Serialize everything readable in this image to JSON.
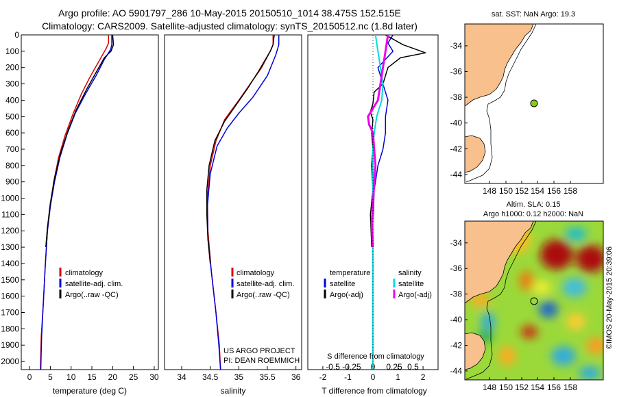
{
  "header": {
    "line1": "Argo profile: AO 5901797_286 10-May-2015 20150510_1014 38.475S 152.515E",
    "line2": "Climatology: CARS2009. Satellite-adjusted climatology: synTS_20150512.nc (1.8d later)"
  },
  "colors": {
    "climatology": "#dd0000",
    "satellite": "#0000dd",
    "argo": "#000000",
    "cyan": "#00dddd",
    "magenta": "#ee00ee",
    "land": "#f7c08c",
    "marker": "#88cc11"
  },
  "chart_data": [
    {
      "type": "line",
      "id": "temperature",
      "xlabel": "temperature (deg C)",
      "ylabel": "",
      "xlim": [
        -2,
        31
      ],
      "ylim": [
        2050,
        0
      ],
      "xticks": [
        0,
        5,
        10,
        15,
        20,
        25,
        30
      ],
      "yticks": [
        0,
        100,
        200,
        300,
        400,
        500,
        600,
        700,
        800,
        900,
        1000,
        1100,
        1200,
        1300,
        1400,
        1500,
        1600,
        1700,
        1800,
        1900,
        2000
      ],
      "legend": [
        "climatology",
        "satellite-adj. clim.",
        "Argo(..raw -QC)"
      ],
      "series": [
        {
          "name": "climatology",
          "color": "#dd0000",
          "width": 1.5,
          "points": [
            [
              19.0,
              0
            ],
            [
              19.0,
              50
            ],
            [
              18.5,
              80
            ],
            [
              16.5,
              170
            ],
            [
              14.5,
              260
            ],
            [
              12.5,
              360
            ],
            [
              10.5,
              480
            ],
            [
              8.5,
              620
            ],
            [
              7.0,
              750
            ],
            [
              5.8,
              900
            ],
            [
              5.0,
              1050
            ],
            [
              4.3,
              1200
            ],
            [
              3.8,
              1400
            ],
            [
              3.3,
              1650
            ],
            [
              2.8,
              1850
            ],
            [
              2.6,
              2050
            ]
          ]
        },
        {
          "name": "satellite-adj. clim.",
          "color": "#0000dd",
          "width": 1.5,
          "points": [
            [
              19.8,
              0
            ],
            [
              19.8,
              60
            ],
            [
              19.5,
              90
            ],
            [
              18.0,
              150
            ],
            [
              16.0,
              250
            ],
            [
              13.5,
              360
            ],
            [
              11.0,
              480
            ],
            [
              9.0,
              610
            ],
            [
              7.3,
              750
            ],
            [
              6.0,
              900
            ],
            [
              5.0,
              1050
            ],
            [
              4.3,
              1200
            ],
            [
              3.8,
              1400
            ],
            [
              3.3,
              1650
            ],
            [
              2.9,
              1850
            ],
            [
              2.7,
              2050
            ]
          ]
        },
        {
          "name": "Argo(..raw -QC)",
          "color": "#000000",
          "width": 1.5,
          "points": [
            [
              20.0,
              0
            ],
            [
              20.2,
              60
            ],
            [
              19.6,
              100
            ],
            [
              18.0,
              140
            ],
            [
              16.0,
              230
            ],
            [
              13.8,
              330
            ],
            [
              11.2,
              460
            ],
            [
              9.2,
              590
            ],
            [
              7.4,
              730
            ],
            [
              6.0,
              880
            ],
            [
              5.0,
              1030
            ],
            [
              4.3,
              1180
            ],
            [
              3.9,
              1300
            ]
          ]
        }
      ]
    },
    {
      "type": "line",
      "id": "salinity",
      "xlabel": "salinity",
      "xlim": [
        33.7,
        36.1
      ],
      "ylim": [
        2050,
        0
      ],
      "xticks": [
        34,
        34.5,
        35,
        35.5,
        36
      ],
      "legend": [
        "climatology",
        "satellite-adj. clim.",
        "Argo(..raw -QC)"
      ],
      "annotation": [
        "US ARGO PROJECT",
        "PI: DEAN ROEMMICH"
      ],
      "series": [
        {
          "name": "climatology",
          "color": "#dd0000",
          "width": 1.5,
          "points": [
            [
              35.6,
              0
            ],
            [
              35.6,
              60
            ],
            [
              35.55,
              100
            ],
            [
              35.4,
              200
            ],
            [
              35.2,
              300
            ],
            [
              35.0,
              400
            ],
            [
              34.75,
              520
            ],
            [
              34.6,
              650
            ],
            [
              34.5,
              800
            ],
            [
              34.45,
              1000
            ],
            [
              34.46,
              1200
            ],
            [
              34.52,
              1450
            ],
            [
              34.6,
              1700
            ],
            [
              34.66,
              1900
            ],
            [
              34.68,
              2050
            ]
          ]
        },
        {
          "name": "satellite-adj. clim.",
          "color": "#0000dd",
          "width": 1.5,
          "points": [
            [
              35.7,
              0
            ],
            [
              35.7,
              60
            ],
            [
              35.65,
              120
            ],
            [
              35.5,
              250
            ],
            [
              35.25,
              380
            ],
            [
              35.0,
              480
            ],
            [
              34.8,
              570
            ],
            [
              34.62,
              680
            ],
            [
              34.5,
              850
            ],
            [
              34.45,
              1050
            ],
            [
              34.46,
              1250
            ],
            [
              34.52,
              1450
            ],
            [
              34.6,
              1700
            ],
            [
              34.65,
              1900
            ],
            [
              34.68,
              2050
            ]
          ]
        },
        {
          "name": "Argo(..raw -QC)",
          "color": "#000000",
          "width": 1.5,
          "points": [
            [
              35.62,
              0
            ],
            [
              35.6,
              60
            ],
            [
              35.55,
              100
            ],
            [
              35.35,
              220
            ],
            [
              35.15,
              330
            ],
            [
              34.95,
              430
            ],
            [
              34.75,
              530
            ],
            [
              34.58,
              650
            ],
            [
              34.48,
              800
            ],
            [
              34.44,
              950
            ],
            [
              34.44,
              1100
            ],
            [
              34.46,
              1250
            ],
            [
              34.5,
              1400
            ]
          ]
        }
      ]
    },
    {
      "type": "line",
      "id": "difference",
      "xlabel": "T difference from climatology",
      "xlabel2": "S difference from climatology",
      "xlim": [
        -2.6,
        2.6
      ],
      "ylim": [
        2050,
        0
      ],
      "xticks": [
        -2,
        -1,
        0,
        1,
        2
      ],
      "xticks2": [
        {
          "v": -1.6,
          "label": "-0.5"
        },
        {
          "v": -0.85,
          "label": "-0.25"
        },
        {
          "v": 0,
          "label": "0"
        },
        {
          "v": 0.85,
          "label": "0.25"
        },
        {
          "v": 1.6,
          "label": "0.5"
        }
      ],
      "legend_t_title": "temperature",
      "legend_s_title": "salinity",
      "legend_t": [
        "satellite",
        "Argo(-adj)"
      ],
      "legend_s": [
        "satellite",
        "Argo(-adj)"
      ],
      "series": [
        {
          "name": "T satellite",
          "color": "#0000dd",
          "width": 1.5,
          "points": [
            [
              0.8,
              0
            ],
            [
              0.6,
              50
            ],
            [
              0.8,
              100
            ],
            [
              0.2,
              200
            ],
            [
              0.4,
              300
            ],
            [
              0.6,
              400
            ],
            [
              0.5,
              500
            ],
            [
              0.5,
              600
            ],
            [
              0.4,
              700
            ],
            [
              0.2,
              800
            ],
            [
              0.05,
              950
            ],
            [
              0.0,
              1200
            ],
            [
              0.0,
              2050
            ]
          ]
        },
        {
          "name": "T Argo(-adj)",
          "color": "#000000",
          "width": 1.5,
          "points": [
            [
              0.5,
              0
            ],
            [
              1.2,
              60
            ],
            [
              2.1,
              110
            ],
            [
              1.1,
              140
            ],
            [
              0.6,
              200
            ],
            [
              0.4,
              300
            ],
            [
              0.05,
              350
            ],
            [
              0.0,
              420
            ],
            [
              -0.1,
              470
            ],
            [
              0.0,
              520
            ],
            [
              -0.05,
              600
            ],
            [
              0.0,
              700
            ],
            [
              -0.05,
              800
            ],
            [
              0.0,
              950
            ],
            [
              -0.1,
              1100
            ],
            [
              -0.05,
              1300
            ]
          ]
        },
        {
          "name": "S satellite",
          "color": "#00dddd",
          "width": 2,
          "points": [
            [
              0.1,
              0
            ],
            [
              0.2,
              100
            ],
            [
              0.3,
              200
            ],
            [
              0.4,
              300
            ],
            [
              0.35,
              400
            ],
            [
              0.15,
              500
            ],
            [
              0.05,
              600
            ],
            [
              0.0,
              700
            ],
            [
              0.0,
              2050
            ]
          ]
        },
        {
          "name": "S Argo(-adj)",
          "color": "#ee00ee",
          "width": 3,
          "points": [
            [
              0.6,
              0
            ],
            [
              0.5,
              100
            ],
            [
              0.4,
              200
            ],
            [
              0.3,
              300
            ],
            [
              0.2,
              400
            ],
            [
              -0.2,
              500
            ],
            [
              -0.15,
              550
            ],
            [
              0.0,
              600
            ],
            [
              0.05,
              700
            ],
            [
              0.1,
              800
            ],
            [
              0.05,
              900
            ],
            [
              0.0,
              1050
            ],
            [
              -0.05,
              1150
            ],
            [
              0.0,
              1300
            ]
          ]
        }
      ]
    }
  ],
  "maps": {
    "sst": {
      "title": "sat. SST: NaN Argo: 19.3",
      "lon_ticks": [
        "148",
        "150",
        "152",
        "154",
        "156",
        "158"
      ],
      "lat_ticks": [
        "-34",
        "-36",
        "-38",
        "-40",
        "-42",
        "-44"
      ]
    },
    "sla": {
      "title1": "Altim. SLA: 0.15",
      "title2": "Argo h1000: 0.12 h2000: NaN",
      "lon_ticks": [
        "148",
        "150",
        "152",
        "154",
        "156",
        "158"
      ],
      "lat_ticks": [
        "-34",
        "-36",
        "-38",
        "-40",
        "-42",
        "-44"
      ]
    }
  },
  "footer": {
    "credit": "©IMOS 20-May-2015 20:39:06"
  }
}
